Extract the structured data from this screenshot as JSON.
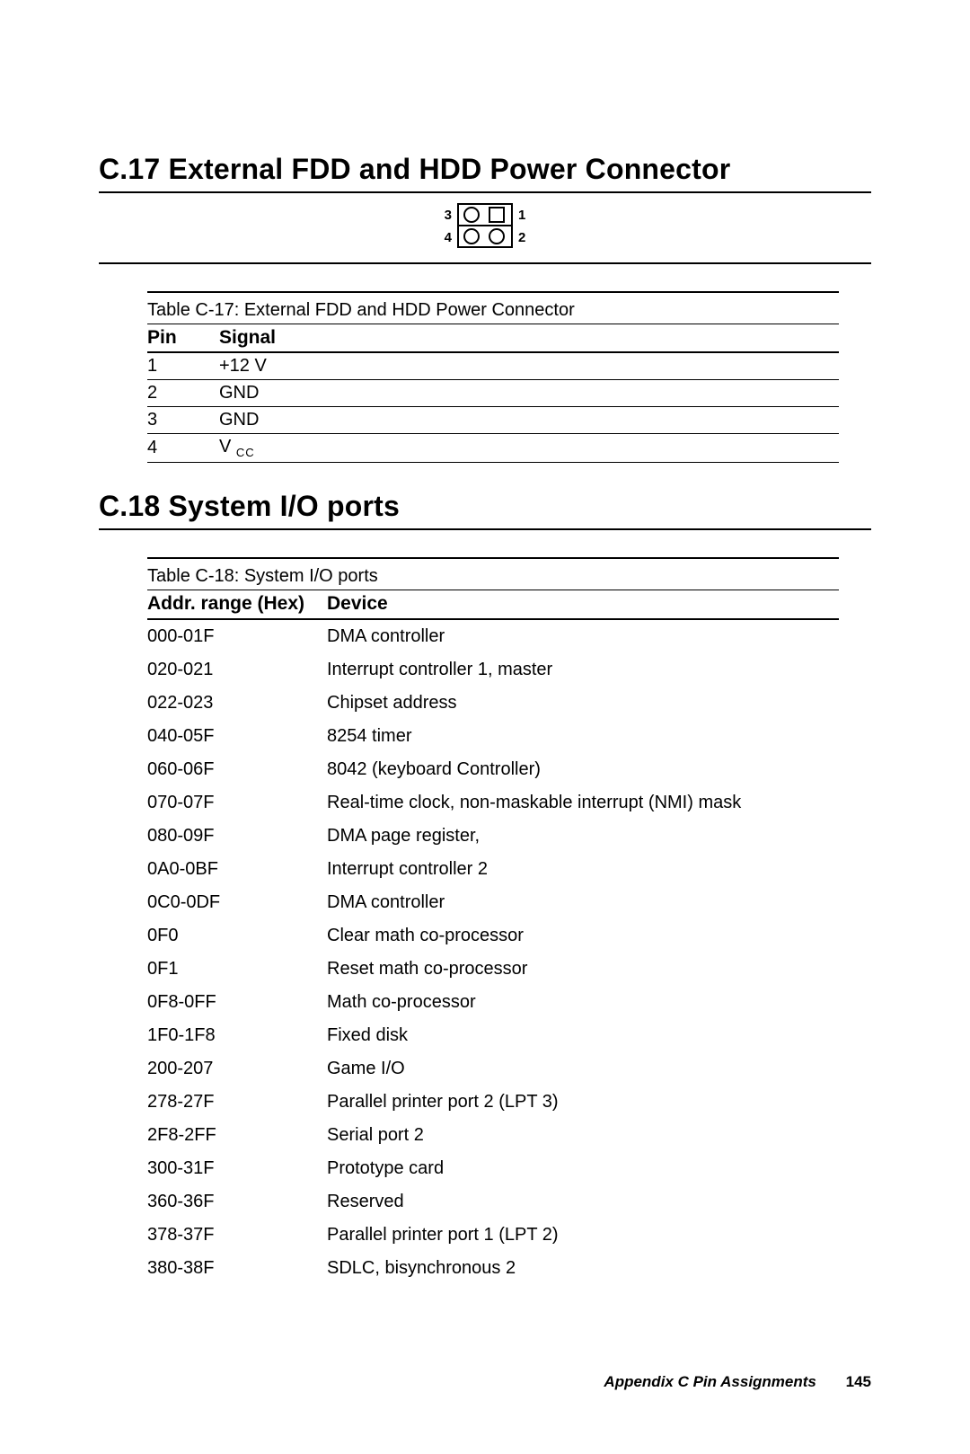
{
  "section_c17": {
    "heading": "C.17  External FDD and HDD Power Connector",
    "figure": {
      "pin3": "3",
      "pin1": "1",
      "pin4": "4",
      "pin2": "2"
    },
    "table": {
      "caption": "Table C-17: External FDD and HDD Power Connector",
      "columns": [
        "Pin",
        "Signal"
      ],
      "rows": [
        {
          "pin": "1",
          "signal": "+12 V"
        },
        {
          "pin": "2",
          "signal": "GND"
        },
        {
          "pin": "3",
          "signal": "GND"
        },
        {
          "pin": "4",
          "signal_base": "V",
          "signal_sub": "CC"
        }
      ]
    }
  },
  "section_c18": {
    "heading": "C.18  System I/O ports",
    "table": {
      "caption": "Table C-18: System I/O ports",
      "col_addr": "Addr. range (Hex)",
      "col_device": "Device",
      "rows": [
        {
          "addr": "000-01F",
          "device": "DMA controller"
        },
        {
          "addr": "020-021",
          "device": "Interrupt controller 1, master"
        },
        {
          "addr": "022-023",
          "device": "Chipset address"
        },
        {
          "addr": "040-05F",
          "device": "8254 timer"
        },
        {
          "addr": "060-06F",
          "device": "8042 (keyboard Controller)"
        },
        {
          "addr": "070-07F",
          "device": "Real-time clock, non-maskable interrupt (NMI) mask"
        },
        {
          "addr": "080-09F",
          "device": "DMA page register,"
        },
        {
          "addr": "0A0-0BF",
          "device": "Interrupt controller 2"
        },
        {
          "addr": "0C0-0DF",
          "device": "DMA controller"
        },
        {
          "addr": "0F0",
          "device": "Clear math co-processor"
        },
        {
          "addr": "0F1",
          "device": "Reset math co-processor"
        },
        {
          "addr": "0F8-0FF",
          "device": "Math co-processor"
        },
        {
          "addr": "1F0-1F8",
          "device": "Fixed disk"
        },
        {
          "addr": "200-207",
          "device": "Game I/O"
        },
        {
          "addr": "278-27F",
          "device": "Parallel printer port 2 (LPT 3)"
        },
        {
          "addr": "2F8-2FF",
          "device": "Serial port 2"
        },
        {
          "addr": "300-31F",
          "device": "Prototype card"
        },
        {
          "addr": "360-36F",
          "device": "Reserved"
        },
        {
          "addr": "378-37F",
          "device": "Parallel printer port 1 (LPT 2)"
        },
        {
          "addr": "380-38F",
          "device": "SDLC, bisynchronous 2"
        }
      ]
    }
  },
  "footer": {
    "title": "Appendix C  Pin Assignments",
    "page": "145"
  }
}
